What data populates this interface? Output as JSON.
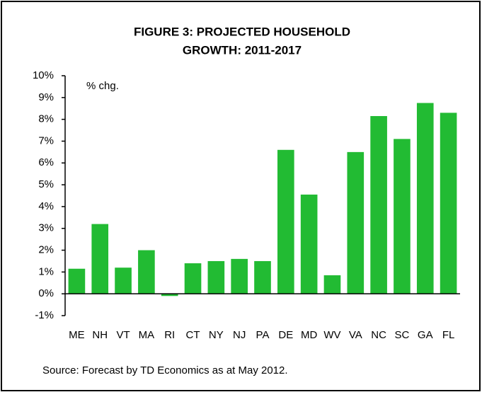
{
  "chart_data": {
    "type": "bar",
    "title": [
      "FIGURE 3: PROJECTED HOUSEHOLD",
      "GROWTH: 2011-2017"
    ],
    "y_axis_label": "% chg.",
    "source": "Source: Forecast by TD Economics as at May 2012.",
    "categories": [
      "ME",
      "NH",
      "VT",
      "MA",
      "RI",
      "CT",
      "NY",
      "NJ",
      "PA",
      "DE",
      "MD",
      "WV",
      "VA",
      "NC",
      "SC",
      "GA",
      "FL"
    ],
    "values": [
      1.15,
      3.2,
      1.2,
      2.0,
      -0.1,
      1.4,
      1.5,
      1.6,
      1.5,
      6.6,
      4.55,
      0.85,
      6.5,
      8.15,
      7.1,
      8.75,
      8.3
    ],
    "color": "#22bb33",
    "ylim": [
      -1,
      10
    ],
    "yticks": [
      {
        "value": -1,
        "label": "-1%"
      },
      {
        "value": 0,
        "label": "0%"
      },
      {
        "value": 1,
        "label": "1%"
      },
      {
        "value": 2,
        "label": "2%"
      },
      {
        "value": 3,
        "label": "3%"
      },
      {
        "value": 4,
        "label": "4%"
      },
      {
        "value": 5,
        "label": "5%"
      },
      {
        "value": 6,
        "label": "6%"
      },
      {
        "value": 7,
        "label": "7%"
      },
      {
        "value": 8,
        "label": "8%"
      },
      {
        "value": 9,
        "label": "9%"
      },
      {
        "value": 10,
        "label": "10%"
      }
    ],
    "grid": false
  }
}
